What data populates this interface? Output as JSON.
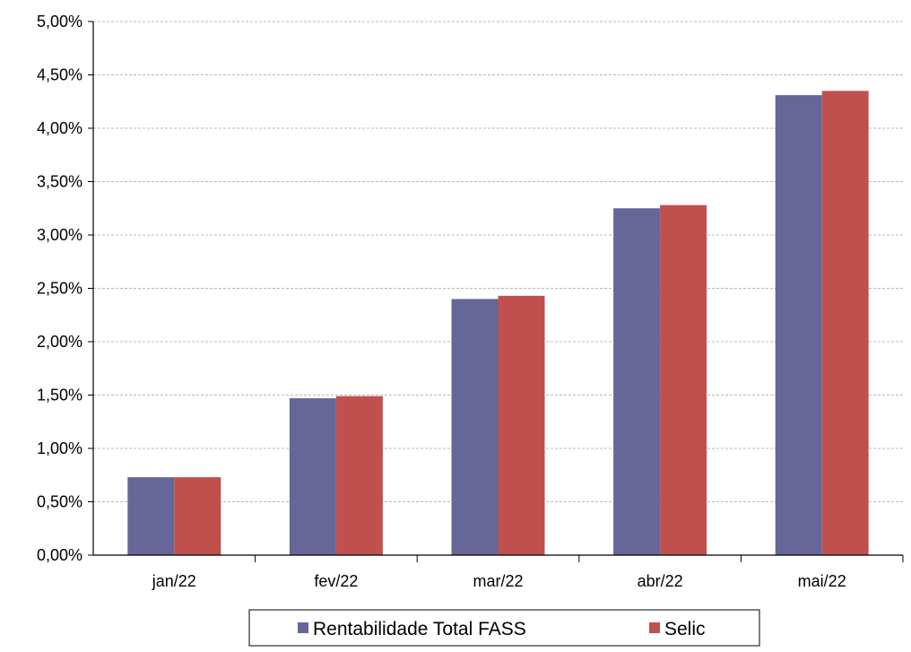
{
  "chart_data": {
    "type": "bar",
    "categories": [
      "jan/22",
      "fev/22",
      "mar/22",
      "abr/22",
      "mai/22"
    ],
    "series": [
      {
        "name": "Rentabilidade Total FASS",
        "values": [
          0.73,
          1.47,
          2.4,
          3.25,
          4.31
        ],
        "color": "#666699"
      },
      {
        "name": "Selic",
        "values": [
          0.73,
          1.49,
          2.43,
          3.28,
          4.35
        ],
        "color": "#C0504D"
      }
    ],
    "y_ticks": [
      "0,00%",
      "0,50%",
      "1,00%",
      "1,50%",
      "2,00%",
      "2,50%",
      "3,00%",
      "3,50%",
      "4,00%",
      "4,50%",
      "5,00%"
    ],
    "ylim": [
      0,
      5
    ],
    "y_step": 0.5,
    "grid": true,
    "legend_position": "bottom",
    "title": "",
    "xlabel": "",
    "ylabel": ""
  }
}
